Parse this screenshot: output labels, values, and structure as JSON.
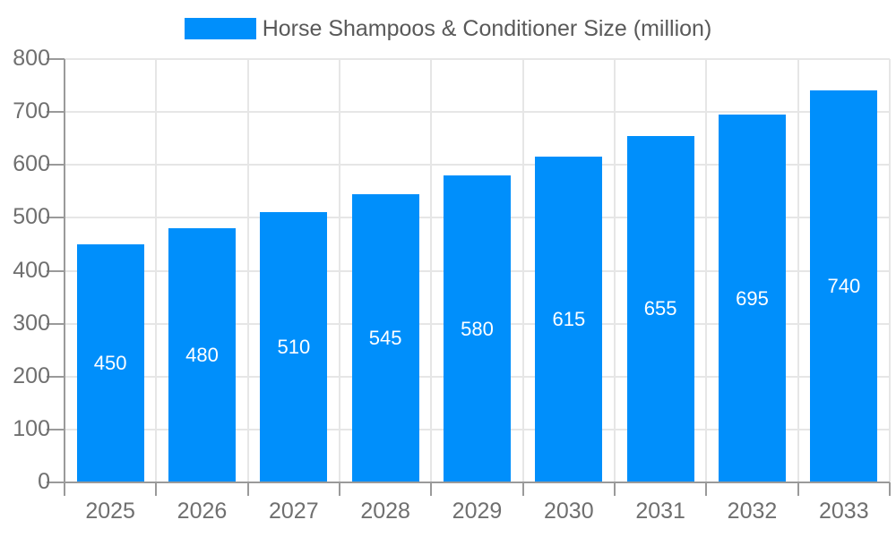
{
  "legend": {
    "label": "Horse Shampoos & Conditioner Size (million)"
  },
  "colors": {
    "bar": "#008FFB",
    "grid": "#e6e6e6",
    "axis": "#9a9a9a",
    "tick_label": "#6f6f6f",
    "legend_text": "#595959",
    "value_label": "#ffffff",
    "background": "#ffffff"
  },
  "chart_data": {
    "type": "bar",
    "title": "Horse Shampoos & Conditioner Size (million)",
    "categories": [
      "2025",
      "2026",
      "2027",
      "2028",
      "2029",
      "2030",
      "2031",
      "2032",
      "2033"
    ],
    "values": [
      450,
      480,
      510,
      545,
      580,
      615,
      655,
      695,
      740
    ],
    "value_labels": [
      "450",
      "480",
      "510",
      "545",
      "580",
      "615",
      "655",
      "695",
      "740"
    ],
    "xlabel": "",
    "ylabel": "",
    "ylim": [
      0,
      800
    ],
    "yticks": [
      0,
      100,
      200,
      300,
      400,
      500,
      600,
      700,
      800
    ],
    "grid": true,
    "legend_position": "top",
    "value_label_position": "inside-center"
  }
}
